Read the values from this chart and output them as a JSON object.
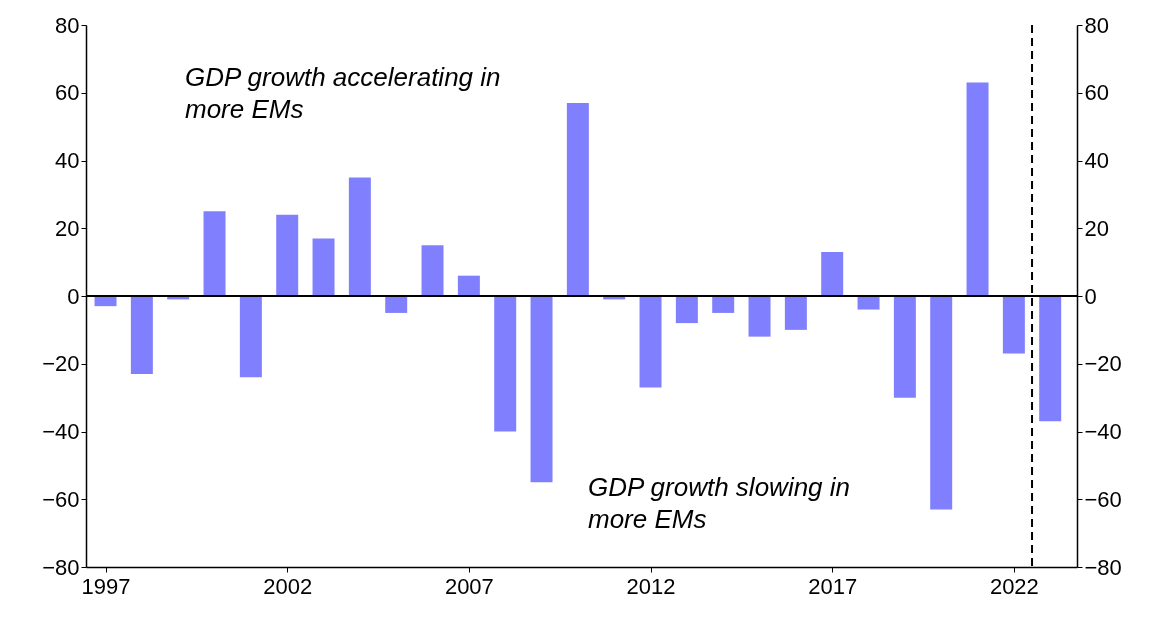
{
  "chart_data": {
    "type": "bar",
    "x": [
      1997,
      1998,
      1999,
      2000,
      2001,
      2002,
      2003,
      2004,
      2005,
      2006,
      2007,
      2008,
      2009,
      2010,
      2011,
      2012,
      2013,
      2014,
      2015,
      2016,
      2017,
      2018,
      2019,
      2020,
      2021,
      2022,
      2023
    ],
    "values": [
      -3,
      -23,
      -1,
      25,
      -24,
      24,
      17,
      35,
      -5,
      15,
      6,
      -40,
      -55,
      57,
      -1,
      -27,
      -8,
      -5,
      -12,
      -10,
      13,
      -4,
      -30,
      -63,
      63,
      -17,
      -37
    ],
    "color": "#8080ff",
    "xlim": [
      1996.6,
      2023.6
    ],
    "xticks": [
      1997,
      2002,
      2007,
      2012,
      2017,
      2022
    ],
    "ylim": [
      -80,
      80
    ],
    "yticks": [
      -80,
      -60,
      -40,
      -20,
      0,
      20,
      40,
      60,
      80
    ],
    "y2lim": [
      -80,
      80
    ],
    "y2ticks": [
      -80,
      -60,
      -40,
      -20,
      0,
      20,
      40,
      60,
      80
    ],
    "ref_lines": [
      {
        "axis": "y",
        "value": 0,
        "color": "#000000",
        "line_style": "solid"
      },
      {
        "axis": "x",
        "value": 2022.5,
        "color": "#000000",
        "line_style": "dashed"
      }
    ],
    "annotations": [
      "GDP growth accelerating in\nmore EMs",
      "GDP growth slowing in\nmore EMs"
    ],
    "grid": false
  }
}
